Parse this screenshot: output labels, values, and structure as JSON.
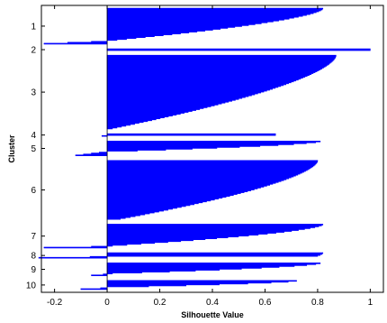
{
  "chart_data": {
    "type": "bar",
    "orientation": "horizontal",
    "xlabel": "Silhouette Value",
    "ylabel": "Cluster",
    "xlim": [
      -0.25,
      1.05
    ],
    "x_ticks": [
      "-0.2",
      "0",
      "0.2",
      "0.4",
      "0.6",
      "0.8",
      "1"
    ],
    "x_tick_values": [
      -0.2,
      0,
      0.2,
      0.4,
      0.6,
      0.8,
      1
    ],
    "grid": false,
    "bar_color": "#0000ff",
    "clusters": [
      {
        "label": "1",
        "n": 36,
        "max": 0.82,
        "min": 0.0,
        "neg_min": -0.24,
        "neg_n": 3
      },
      {
        "label": "2",
        "n": 2,
        "max": 1.0,
        "min": 1.0,
        "neg_min": 0,
        "neg_n": 0
      },
      {
        "label": "3",
        "n": 80,
        "max": 0.87,
        "min": 0.02,
        "neg_min": 0,
        "neg_n": 0
      },
      {
        "label": "4",
        "n": 2,
        "max": 0.64,
        "min": 0.64,
        "neg_min": -0.02,
        "neg_n": 1
      },
      {
        "label": "5",
        "n": 12,
        "max": 0.81,
        "min": 0.0,
        "neg_min": -0.12,
        "neg_n": 4
      },
      {
        "label": "6",
        "n": 64,
        "max": 0.8,
        "min": 0.05,
        "neg_min": 0,
        "neg_n": 0
      },
      {
        "label": "7",
        "n": 24,
        "max": 0.82,
        "min": 0.02,
        "neg_min": -0.24,
        "neg_n": 2
      },
      {
        "label": "8",
        "n": 4,
        "max": 0.82,
        "min": 0.8,
        "neg_min": -0.26,
        "neg_n": 2
      },
      {
        "label": "9",
        "n": 12,
        "max": 0.81,
        "min": 0.02,
        "neg_min": -0.06,
        "neg_n": 2
      },
      {
        "label": "10",
        "n": 8,
        "max": 0.72,
        "min": 0.0,
        "neg_min": -0.1,
        "neg_n": 2
      }
    ]
  }
}
